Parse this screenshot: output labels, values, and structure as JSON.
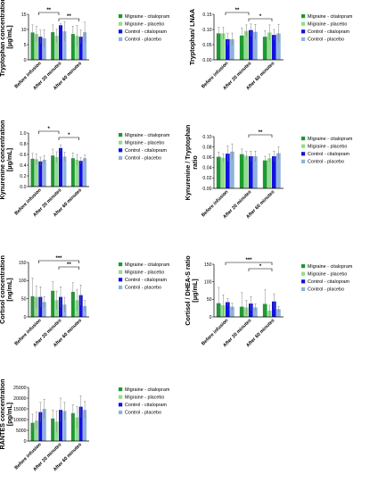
{
  "colors": {
    "Migraine - citalopram": "#1a9a2e",
    "Migraine - placebo": "#93dc8e",
    "Control - citalopram": "#1212e0",
    "Control - placebo": "#8fb3dc"
  },
  "chart_data": [
    {
      "type": "bar",
      "ylabel": [
        "Tryptophan concentration",
        "[μg/mL]"
      ],
      "categories": [
        "Before infusion",
        "After 20 minutes",
        "After 60 minutes"
      ],
      "ylim": [
        0,
        15
      ],
      "yticks": [
        0,
        5,
        10,
        15
      ],
      "grid": false,
      "legend": "right",
      "series": [
        {
          "name": "Migraine - citalopram",
          "values": [
            9.0,
            9.1,
            8.5
          ],
          "err": [
            2.5,
            2.4,
            2.6
          ]
        },
        {
          "name": "Migraine - placebo",
          "values": [
            8.5,
            7.9,
            7.9
          ],
          "err": [
            2.5,
            2.2,
            3.4
          ]
        },
        {
          "name": "Control - citalopram",
          "values": [
            7.6,
            11.4,
            7.6
          ],
          "err": [
            2.2,
            0.5,
            2.2
          ]
        },
        {
          "name": "Control - placebo",
          "values": [
            7.1,
            9.4,
            9.1
          ],
          "err": [
            2.8,
            3.2,
            3.3
          ]
        }
      ],
      "significance": [
        {
          "from": 0,
          "to": 1,
          "label": "**"
        },
        {
          "from": 1,
          "to": 2,
          "label": "**"
        }
      ]
    },
    {
      "type": "bar",
      "ylabel": [
        "Tryptophan/ LNAA"
      ],
      "categories": [
        "Before infusion",
        "After 20 minutes",
        "After 60 minutes"
      ],
      "ylim": [
        0,
        0.15
      ],
      "yticks": [
        0.0,
        0.05,
        0.1,
        0.15
      ],
      "grid": false,
      "legend": "right",
      "series": [
        {
          "name": "Migraine - citalopram",
          "values": [
            0.087,
            0.08,
            0.076
          ],
          "err": [
            0.02,
            0.025,
            0.02
          ]
        },
        {
          "name": "Migraine - placebo",
          "values": [
            0.087,
            0.095,
            0.09
          ],
          "err": [
            0.02,
            0.02,
            0.025
          ]
        },
        {
          "name": "Control - citalopram",
          "values": [
            0.068,
            0.098,
            0.082
          ],
          "err": [
            0.02,
            0.02,
            0.018
          ]
        },
        {
          "name": "Control - placebo",
          "values": [
            0.068,
            0.092,
            0.087
          ],
          "err": [
            0.02,
            0.025,
            0.03
          ]
        }
      ],
      "significance": [
        {
          "from": 0,
          "to": 1,
          "label": "**"
        },
        {
          "from": 1,
          "to": 2,
          "label": "*"
        }
      ]
    },
    {
      "type": "bar",
      "ylabel": [
        "Kynurenine concentration",
        "[μg/mL]"
      ],
      "categories": [
        "Before infusion",
        "After 20 minutes",
        "After 60 minutes"
      ],
      "ylim": [
        0,
        1.0
      ],
      "yticks": [
        0.0,
        0.2,
        0.4,
        0.6,
        0.8,
        1.0
      ],
      "grid": false,
      "legend": "right",
      "series": [
        {
          "name": "Migraine - citalopram",
          "values": [
            0.52,
            0.58,
            0.53
          ],
          "err": [
            0.1,
            0.12,
            0.1
          ]
        },
        {
          "name": "Migraine - placebo",
          "values": [
            0.51,
            0.55,
            0.5
          ],
          "err": [
            0.1,
            0.1,
            0.1
          ]
        },
        {
          "name": "Control - citalopram",
          "values": [
            0.47,
            0.72,
            0.48
          ],
          "err": [
            0.08,
            0.06,
            0.06
          ]
        },
        {
          "name": "Control - placebo",
          "values": [
            0.5,
            0.56,
            0.53
          ],
          "err": [
            0.08,
            0.08,
            0.06
          ]
        }
      ],
      "significance": [
        {
          "from": 0,
          "to": 1,
          "label": "*"
        },
        {
          "from": 1,
          "to": 2,
          "label": "*"
        }
      ]
    },
    {
      "type": "bar",
      "ylabel": [
        "Kynurenine / Tryptophan",
        "ratio"
      ],
      "categories": [
        "Before infusion",
        "After 20 minutes",
        "After 60 minutes"
      ],
      "ylim": [
        0,
        0.1
      ],
      "yticks": [
        0.0,
        0.02,
        0.04,
        0.06,
        0.08,
        0.1
      ],
      "grid": false,
      "legend": "right",
      "series": [
        {
          "name": "Migraine - citalopram",
          "values": [
            0.061,
            0.066,
            0.054
          ],
          "err": [
            0.009,
            0.01,
            0.008
          ]
        },
        {
          "name": "Migraine - placebo",
          "values": [
            0.059,
            0.063,
            0.058
          ],
          "err": [
            0.008,
            0.008,
            0.008
          ]
        },
        {
          "name": "Control - citalopram",
          "values": [
            0.067,
            0.062,
            0.062
          ],
          "err": [
            0.015,
            0.01,
            0.01
          ]
        },
        {
          "name": "Control - placebo",
          "values": [
            0.071,
            0.062,
            0.068
          ],
          "err": [
            0.015,
            0.01,
            0.012
          ]
        }
      ],
      "significance": [
        {
          "from": 1,
          "to": 2,
          "label": "**"
        }
      ]
    },
    {
      "type": "bar",
      "ylabel": [
        "Cortisol concentration",
        "[ng/mL]"
      ],
      "categories": [
        "Before infusion",
        "After 20 minutes",
        "After 60 minutes"
      ],
      "ylim": [
        0,
        150
      ],
      "yticks": [
        0,
        50,
        100,
        150
      ],
      "grid": false,
      "legend": "right",
      "series": [
        {
          "name": "Migraine - citalopram",
          "values": [
            57,
            72,
            69
          ],
          "err": [
            50,
            25,
            25
          ]
        },
        {
          "name": "Migraine - placebo",
          "values": [
            55,
            46,
            46
          ],
          "err": [
            30,
            25,
            30
          ]
        },
        {
          "name": "Control - citalopram",
          "values": [
            55,
            55,
            60
          ],
          "err": [
            28,
            28,
            28
          ]
        },
        {
          "name": "Control - placebo",
          "values": [
            41,
            34,
            30
          ],
          "err": [
            15,
            20,
            15
          ]
        }
      ],
      "significance": [
        {
          "from": 0,
          "to": 2,
          "label": "***"
        },
        {
          "from": 1,
          "to": 2,
          "label": "**"
        }
      ]
    },
    {
      "type": "bar",
      "ylabel": [
        "Cortisol / DHEA-S ratio",
        "[μg/mL]"
      ],
      "categories": [
        "Before infusion",
        "After 20 minutes",
        "After 60 minutes"
      ],
      "ylim": [
        0,
        150
      ],
      "yticks": [
        0,
        50,
        100,
        150
      ],
      "grid": false,
      "legend": "right",
      "series": [
        {
          "name": "Migraine - citalopram",
          "values": [
            39,
            29,
            37
          ],
          "err": [
            45,
            40,
            40
          ]
        },
        {
          "name": "Migraine - placebo",
          "values": [
            33,
            27,
            18
          ],
          "err": [
            30,
            20,
            15
          ]
        },
        {
          "name": "Control - citalopram",
          "values": [
            42,
            38,
            44
          ],
          "err": [
            10,
            20,
            22
          ]
        },
        {
          "name": "Control - placebo",
          "values": [
            29,
            27,
            22
          ],
          "err": [
            10,
            10,
            8
          ]
        }
      ],
      "significance": [
        {
          "from": 0,
          "to": 2,
          "label": "***"
        },
        {
          "from": 1,
          "to": 2,
          "label": "*"
        }
      ]
    },
    {
      "type": "bar",
      "ylabel": [
        "RANTES concentration",
        "[pg/mL]"
      ],
      "categories": [
        "Before infusion",
        "After 20 minutes",
        "After 60 minutes"
      ],
      "ylim": [
        0,
        25000
      ],
      "yticks": [
        0,
        5000,
        10000,
        15000,
        20000,
        25000
      ],
      "grid": false,
      "legend": "right",
      "series": [
        {
          "name": "Migraine - citalopram",
          "values": [
            8500,
            10500,
            13000
          ],
          "err": [
            4000,
            4000,
            4000
          ]
        },
        {
          "name": "Migraine - placebo",
          "values": [
            9500,
            9000,
            11000
          ],
          "err": [
            4000,
            5000,
            5000
          ]
        },
        {
          "name": "Control - citalopram",
          "values": [
            13500,
            14500,
            16000
          ],
          "err": [
            4500,
            5500,
            5000
          ]
        },
        {
          "name": "Control - placebo",
          "values": [
            15000,
            14000,
            14500
          ],
          "err": [
            4500,
            4000,
            4000
          ]
        }
      ],
      "significance": []
    }
  ]
}
